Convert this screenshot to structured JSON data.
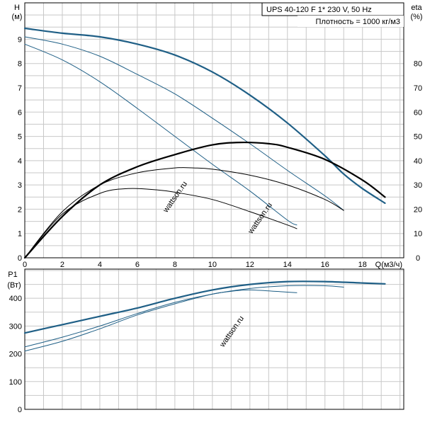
{
  "chart_data": [
    {
      "type": "line",
      "panel": "head-efficiency",
      "title": "UPS 40-120 F    1* 230 V, 50 Hz",
      "subtitle": "Плотность = 1000 кг/м3",
      "ylabel_left": "H",
      "ylabel_left_unit": "(м)",
      "ylabel_right": "eta",
      "ylabel_right_unit": "(%)",
      "xlabel": "Q(м3/ч)",
      "x_ticks": [
        "0",
        "2",
        "4",
        "6",
        "8",
        "10",
        "12",
        "14",
        "16",
        "18"
      ],
      "y_ticks_left": [
        "0",
        "1",
        "2",
        "3",
        "4",
        "5",
        "6",
        "7",
        "8",
        "9"
      ],
      "y_ticks_right": [
        "0",
        "10",
        "20",
        "30",
        "40",
        "50",
        "60",
        "70",
        "80"
      ],
      "xlim": [
        0,
        20.2
      ],
      "ylim_left": [
        0,
        10.5
      ],
      "ylim_right": [
        0,
        105
      ],
      "grid": true,
      "head_series": [
        {
          "style": "thick",
          "x": [
            0,
            2,
            4,
            6,
            8,
            10,
            12,
            14,
            16,
            17,
            18,
            19.2
          ],
          "y": [
            9.45,
            9.25,
            9.1,
            8.8,
            8.35,
            7.65,
            6.7,
            5.55,
            4.2,
            3.45,
            2.85,
            2.25
          ]
        },
        {
          "style": "thin",
          "x": [
            0,
            2,
            4,
            6,
            8,
            10,
            12,
            14,
            16,
            17
          ],
          "y": [
            9.1,
            8.8,
            8.3,
            7.55,
            6.75,
            5.75,
            4.7,
            3.6,
            2.55,
            1.95
          ]
        },
        {
          "style": "thin",
          "x": [
            0,
            2,
            4,
            6,
            8,
            10,
            12,
            14,
            14.5
          ],
          "y": [
            8.8,
            8.15,
            7.25,
            6.15,
            5.0,
            3.85,
            2.75,
            1.55,
            1.35
          ]
        }
      ],
      "efficiency_series": [
        {
          "style": "thick",
          "x": [
            0,
            2,
            4,
            6,
            8,
            10,
            11.5,
            13,
            14,
            16,
            18,
            19.2
          ],
          "y": [
            0,
            17,
            30,
            37.5,
            42.5,
            46.5,
            47.5,
            47,
            45.5,
            40.5,
            32,
            25
          ]
        },
        {
          "style": "thin",
          "x": [
            0,
            2,
            4,
            6,
            8,
            9,
            10,
            12,
            14,
            16,
            17
          ],
          "y": [
            0,
            19,
            30,
            35,
            37,
            37,
            36.5,
            34,
            30,
            24,
            19.5
          ]
        },
        {
          "style": "thin",
          "x": [
            0,
            2,
            4,
            5.5,
            7,
            8,
            10,
            12,
            14,
            14.5
          ],
          "y": [
            0,
            18,
            26.5,
            28.5,
            28,
            27,
            24,
            19,
            13.5,
            12
          ]
        }
      ]
    },
    {
      "type": "line",
      "panel": "power",
      "ylabel": "P1",
      "ylabel_unit": "(Вт)",
      "y_ticks": [
        "0",
        "100",
        "200",
        "300",
        "400"
      ],
      "xlim": [
        0,
        20.2
      ],
      "ylim": [
        0,
        505
      ],
      "grid": true,
      "series": [
        {
          "style": "thick",
          "x": [
            0,
            2,
            4,
            6,
            8,
            10,
            12,
            14,
            16,
            18,
            19.2
          ],
          "y": [
            275,
            305,
            335,
            365,
            400,
            430,
            450,
            460,
            460,
            455,
            452
          ]
        },
        {
          "style": "thin",
          "x": [
            0,
            2,
            4,
            6,
            8,
            10,
            12,
            14,
            16,
            17
          ],
          "y": [
            225,
            260,
            300,
            345,
            385,
            415,
            435,
            445,
            445,
            440
          ]
        },
        {
          "style": "thin",
          "x": [
            0,
            2,
            4,
            6,
            8,
            10,
            11,
            12,
            14,
            14.5
          ],
          "y": [
            210,
            245,
            290,
            340,
            380,
            415,
            425,
            430,
            422,
            420
          ]
        }
      ]
    }
  ],
  "watermark": "wattson.ru"
}
